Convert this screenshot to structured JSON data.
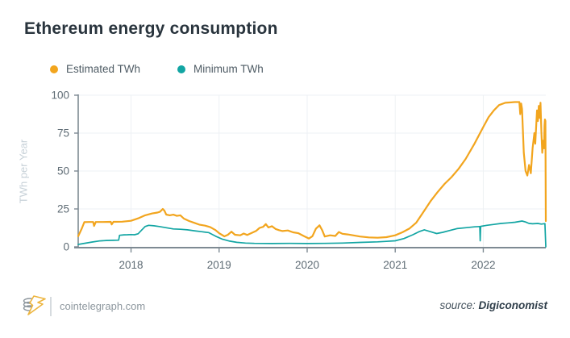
{
  "title": "Ethereum energy consumption",
  "legend": [
    {
      "label": "Estimated TWh",
      "color": "#F2A51E"
    },
    {
      "label": "Minimum TWh",
      "color": "#12A5A3"
    }
  ],
  "footer": {
    "site": "cointelegraph.com",
    "source_label": "source:",
    "source_name": "Digiconomist"
  },
  "colors": {
    "estimated": "#F2A51E",
    "minimum": "#12A5A3",
    "grid": "#EEF1F4",
    "axis": "#7E8A93",
    "tick_text": "#5E6B74",
    "axis_label": "#C7D1D8",
    "title": "#29343D",
    "legend_text": "#4E5B64",
    "footer_text": "#8D979E",
    "source_text": "#44525D",
    "source_name": "#2F3E4A",
    "divider": "#D6DBDF",
    "logo_gray": "#8A949B",
    "logo_yellow": "#EDB53F"
  },
  "chart_data": {
    "type": "line",
    "title": "Ethereum energy consumption",
    "xlabel": "",
    "ylabel": "TWh per Year",
    "xlim": [
      2017.4,
      2022.71
    ],
    "ylim": [
      0,
      100
    ],
    "yticks": [
      0,
      25,
      50,
      75,
      100
    ],
    "xticks": [
      2018,
      2019,
      2020,
      2021,
      2022
    ],
    "grid": true,
    "legend_position": "top-left",
    "series": [
      {
        "name": "Estimated TWh",
        "color": "#F2A51E",
        "points": [
          [
            2017.4,
            7.0
          ],
          [
            2017.44,
            12.0
          ],
          [
            2017.47,
            16.3
          ],
          [
            2017.52,
            16.4
          ],
          [
            2017.57,
            16.4
          ],
          [
            2017.58,
            13.8
          ],
          [
            2017.6,
            16.4
          ],
          [
            2017.68,
            16.4
          ],
          [
            2017.77,
            16.5
          ],
          [
            2017.78,
            14.8
          ],
          [
            2017.8,
            16.5
          ],
          [
            2017.9,
            16.6
          ],
          [
            2018.0,
            17.2
          ],
          [
            2018.08,
            18.8
          ],
          [
            2018.16,
            20.8
          ],
          [
            2018.24,
            22.0
          ],
          [
            2018.3,
            22.6
          ],
          [
            2018.33,
            23.2
          ],
          [
            2018.36,
            25.0
          ],
          [
            2018.38,
            23.8
          ],
          [
            2018.4,
            21.3
          ],
          [
            2018.44,
            20.8
          ],
          [
            2018.48,
            21.2
          ],
          [
            2018.52,
            20.4
          ],
          [
            2018.56,
            20.8
          ],
          [
            2018.6,
            18.6
          ],
          [
            2018.66,
            17.0
          ],
          [
            2018.72,
            15.8
          ],
          [
            2018.78,
            14.6
          ],
          [
            2018.84,
            14.0
          ],
          [
            2018.9,
            13.0
          ],
          [
            2018.96,
            11.0
          ],
          [
            2019.0,
            9.0
          ],
          [
            2019.06,
            6.9
          ],
          [
            2019.1,
            8.0
          ],
          [
            2019.14,
            10.0
          ],
          [
            2019.18,
            8.0
          ],
          [
            2019.24,
            7.6
          ],
          [
            2019.28,
            8.8
          ],
          [
            2019.32,
            7.8
          ],
          [
            2019.38,
            9.4
          ],
          [
            2019.42,
            10.5
          ],
          [
            2019.46,
            12.5
          ],
          [
            2019.5,
            13.2
          ],
          [
            2019.53,
            15.0
          ],
          [
            2019.56,
            12.8
          ],
          [
            2019.6,
            13.6
          ],
          [
            2019.64,
            11.8
          ],
          [
            2019.68,
            11.0
          ],
          [
            2019.72,
            10.4
          ],
          [
            2019.78,
            10.8
          ],
          [
            2019.84,
            9.6
          ],
          [
            2019.9,
            9.0
          ],
          [
            2019.96,
            7.2
          ],
          [
            2020.02,
            5.5
          ],
          [
            2020.06,
            7.0
          ],
          [
            2020.1,
            12.0
          ],
          [
            2020.14,
            14.2
          ],
          [
            2020.17,
            11.0
          ],
          [
            2020.2,
            6.8
          ],
          [
            2020.26,
            7.6
          ],
          [
            2020.32,
            7.2
          ],
          [
            2020.36,
            9.8
          ],
          [
            2020.4,
            8.6
          ],
          [
            2020.46,
            8.2
          ],
          [
            2020.52,
            7.6
          ],
          [
            2020.6,
            6.8
          ],
          [
            2020.7,
            6.2
          ],
          [
            2020.8,
            6.0
          ],
          [
            2020.9,
            6.4
          ],
          [
            2021.0,
            7.6
          ],
          [
            2021.08,
            9.6
          ],
          [
            2021.16,
            12.0
          ],
          [
            2021.24,
            16.0
          ],
          [
            2021.32,
            23.0
          ],
          [
            2021.4,
            30.0
          ],
          [
            2021.48,
            36.0
          ],
          [
            2021.56,
            41.5
          ],
          [
            2021.64,
            46.0
          ],
          [
            2021.72,
            51.5
          ],
          [
            2021.8,
            58.0
          ],
          [
            2021.9,
            68.0
          ],
          [
            2022.0,
            79.0
          ],
          [
            2022.06,
            85.5
          ],
          [
            2022.12,
            90.0
          ],
          [
            2022.18,
            93.5
          ],
          [
            2022.25,
            95.0
          ],
          [
            2022.36,
            95.5
          ],
          [
            2022.41,
            95.5
          ],
          [
            2022.42,
            87.5
          ],
          [
            2022.43,
            94.5
          ],
          [
            2022.44,
            91.0
          ],
          [
            2022.46,
            62.0
          ],
          [
            2022.48,
            50.0
          ],
          [
            2022.5,
            47.0
          ],
          [
            2022.52,
            54.0
          ],
          [
            2022.54,
            48.5
          ],
          [
            2022.56,
            65.0
          ],
          [
            2022.58,
            75.0
          ],
          [
            2022.59,
            68.0
          ],
          [
            2022.61,
            90.0
          ],
          [
            2022.62,
            83.0
          ],
          [
            2022.63,
            93.0
          ],
          [
            2022.64,
            85.0
          ],
          [
            2022.65,
            95.0
          ],
          [
            2022.66,
            76.0
          ],
          [
            2022.67,
            62.0
          ],
          [
            2022.68,
            70.0
          ],
          [
            2022.69,
            65.0
          ],
          [
            2022.695,
            80.0
          ],
          [
            2022.7,
            84.0
          ],
          [
            2022.705,
            83.0
          ],
          [
            2022.71,
            17.0
          ]
        ]
      },
      {
        "name": "Minimum TWh",
        "color": "#12A5A3",
        "points": [
          [
            2017.4,
            1.6
          ],
          [
            2017.48,
            2.4
          ],
          [
            2017.56,
            3.2
          ],
          [
            2017.64,
            3.9
          ],
          [
            2017.72,
            4.2
          ],
          [
            2017.8,
            4.3
          ],
          [
            2017.86,
            4.4
          ],
          [
            2017.87,
            7.6
          ],
          [
            2017.92,
            7.9
          ],
          [
            2017.96,
            8.0
          ],
          [
            2018.0,
            8.1
          ],
          [
            2018.04,
            8.0
          ],
          [
            2018.08,
            8.6
          ],
          [
            2018.12,
            11.0
          ],
          [
            2018.16,
            13.4
          ],
          [
            2018.2,
            14.2
          ],
          [
            2018.26,
            13.9
          ],
          [
            2018.32,
            13.4
          ],
          [
            2018.4,
            12.6
          ],
          [
            2018.48,
            11.8
          ],
          [
            2018.56,
            11.6
          ],
          [
            2018.64,
            11.2
          ],
          [
            2018.72,
            10.6
          ],
          [
            2018.8,
            10.0
          ],
          [
            2018.88,
            9.4
          ],
          [
            2018.96,
            7.0
          ],
          [
            2019.04,
            5.0
          ],
          [
            2019.12,
            3.8
          ],
          [
            2019.2,
            3.0
          ],
          [
            2019.3,
            2.5
          ],
          [
            2019.4,
            2.3
          ],
          [
            2019.6,
            2.2
          ],
          [
            2019.8,
            2.3
          ],
          [
            2020.0,
            2.2
          ],
          [
            2020.2,
            2.3
          ],
          [
            2020.4,
            2.5
          ],
          [
            2020.6,
            2.9
          ],
          [
            2020.8,
            3.3
          ],
          [
            2020.9,
            3.6
          ],
          [
            2021.0,
            4.0
          ],
          [
            2021.1,
            5.5
          ],
          [
            2021.2,
            8.0
          ],
          [
            2021.27,
            10.0
          ],
          [
            2021.33,
            11.2
          ],
          [
            2021.4,
            10.0
          ],
          [
            2021.47,
            8.8
          ],
          [
            2021.54,
            9.6
          ],
          [
            2021.62,
            10.8
          ],
          [
            2021.7,
            12.0
          ],
          [
            2021.8,
            12.6
          ],
          [
            2021.9,
            13.2
          ],
          [
            2021.96,
            13.4
          ],
          [
            2021.965,
            4.0
          ],
          [
            2021.97,
            13.5
          ],
          [
            2022.04,
            14.2
          ],
          [
            2022.12,
            14.8
          ],
          [
            2022.2,
            15.4
          ],
          [
            2022.28,
            15.8
          ],
          [
            2022.36,
            16.2
          ],
          [
            2022.44,
            17.0
          ],
          [
            2022.48,
            16.4
          ],
          [
            2022.52,
            15.4
          ],
          [
            2022.56,
            15.2
          ],
          [
            2022.62,
            15.4
          ],
          [
            2022.66,
            15.0
          ],
          [
            2022.7,
            15.3
          ],
          [
            2022.71,
            0.0
          ]
        ]
      }
    ]
  }
}
